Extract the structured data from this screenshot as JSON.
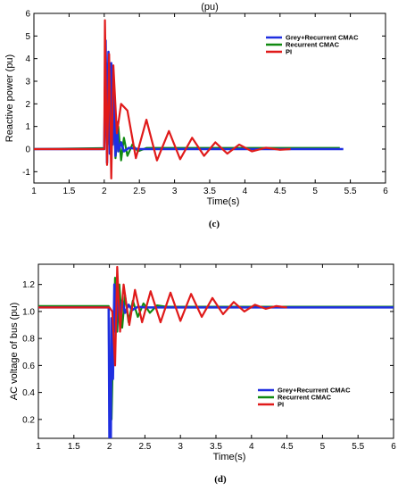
{
  "charts": [
    {
      "type": "line",
      "title": "(pu)",
      "xlabel": "Time(s)",
      "ylabel": "Reactive power (pu)",
      "caption": "(c)",
      "xlim": [
        1,
        6
      ],
      "ylim": [
        -1.5,
        6
      ],
      "xticks": [
        "1",
        "1.5",
        "2",
        "2.5",
        "3",
        "3.5",
        "4",
        "4.5",
        "5",
        "5.5",
        "6"
      ],
      "yticks": [
        "-1",
        "0",
        "1",
        "2",
        "3",
        "4",
        "5",
        "6"
      ],
      "legend_position": "top-right",
      "series": [
        {
          "name": "Grey+Recurrent CMAC",
          "color": "#1f2fe0",
          "x_end": 5.4,
          "points": [
            [
              1,
              0
            ],
            [
              1.9,
              0
            ],
            [
              2.0,
              0
            ],
            [
              2.02,
              4.8
            ],
            [
              2.04,
              -0.6
            ],
            [
              2.06,
              4.3
            ],
            [
              2.08,
              -0.2
            ],
            [
              2.1,
              3.8
            ],
            [
              2.12,
              0.2
            ],
            [
              2.14,
              2.6
            ],
            [
              2.16,
              -0.3
            ],
            [
              2.18,
              1.2
            ],
            [
              2.2,
              -0.1
            ],
            [
              2.24,
              0.3
            ],
            [
              2.28,
              -0.1
            ],
            [
              2.35,
              0.05
            ],
            [
              2.5,
              0
            ],
            [
              5.4,
              0
            ]
          ]
        },
        {
          "name": "Recurrent CMAC",
          "color": "#118a11",
          "x_end": 5.35,
          "points": [
            [
              1,
              0
            ],
            [
              1.95,
              0.04
            ],
            [
              2.0,
              0.04
            ],
            [
              2.03,
              3.8
            ],
            [
              2.05,
              0.2
            ],
            [
              2.08,
              2.8
            ],
            [
              2.1,
              -0.2
            ],
            [
              2.13,
              2.2
            ],
            [
              2.16,
              -0.4
            ],
            [
              2.2,
              1.0
            ],
            [
              2.24,
              -0.5
            ],
            [
              2.28,
              0.5
            ],
            [
              2.33,
              -0.3
            ],
            [
              2.4,
              0.2
            ],
            [
              2.48,
              -0.1
            ],
            [
              2.6,
              0.05
            ],
            [
              5.35,
              0.05
            ]
          ]
        },
        {
          "name": "PI",
          "color": "#e01a1a",
          "x_end": 4.65,
          "points": [
            [
              1,
              0
            ],
            [
              1.95,
              0
            ],
            [
              2.0,
              0
            ],
            [
              2.01,
              5.7
            ],
            [
              2.04,
              -0.7
            ],
            [
              2.07,
              4.2
            ],
            [
              2.1,
              -1.3
            ],
            [
              2.13,
              3.7
            ],
            [
              2.18,
              0.7
            ],
            [
              2.24,
              2.0
            ],
            [
              2.33,
              1.7
            ],
            [
              2.45,
              -0.4
            ],
            [
              2.6,
              1.3
            ],
            [
              2.75,
              -0.5
            ],
            [
              2.92,
              0.8
            ],
            [
              3.08,
              -0.45
            ],
            [
              3.25,
              0.5
            ],
            [
              3.42,
              -0.3
            ],
            [
              3.58,
              0.3
            ],
            [
              3.75,
              -0.2
            ],
            [
              3.92,
              0.2
            ],
            [
              4.1,
              -0.1
            ],
            [
              4.3,
              0.06
            ],
            [
              4.5,
              -0.03
            ],
            [
              4.65,
              0
            ]
          ]
        }
      ]
    },
    {
      "type": "line",
      "title": "",
      "xlabel": "Time(s)",
      "ylabel": "AC voltage of bus (pu)",
      "caption": "(d)",
      "xlim": [
        1,
        6
      ],
      "ylim": [
        0.06,
        1.35
      ],
      "xticks": [
        "1",
        "1.5",
        "2",
        "2.5",
        "3",
        "3.5",
        "4",
        "4.5",
        "5",
        "5.5",
        "6"
      ],
      "yticks": [
        "0.2",
        "0.4",
        "0.6",
        "0.8",
        "1.0",
        "1.2"
      ],
      "legend_position": "bottom-right",
      "series": [
        {
          "name": "Grey+Recurrent CMAC",
          "color": "#1f2fe0",
          "x_end": 6,
          "points": [
            [
              1,
              1.03
            ],
            [
              1.99,
              1.03
            ],
            [
              2.0,
              0.06
            ],
            [
              2.02,
              0.06
            ],
            [
              2.03,
              0.95
            ],
            [
              2.05,
              0.5
            ],
            [
              2.07,
              1.2
            ],
            [
              2.09,
              0.85
            ],
            [
              2.12,
              1.15
            ],
            [
              2.15,
              0.95
            ],
            [
              2.18,
              1.08
            ],
            [
              2.22,
              0.99
            ],
            [
              2.27,
              1.05
            ],
            [
              2.32,
              1.01
            ],
            [
              2.4,
              1.035
            ],
            [
              2.5,
              1.03
            ],
            [
              6,
              1.03
            ]
          ]
        },
        {
          "name": "Recurrent CMAC",
          "color": "#118a11",
          "x_end": 6,
          "points": [
            [
              1,
              1.04
            ],
            [
              1.99,
              1.04
            ],
            [
              2.0,
              0.2
            ],
            [
              2.03,
              0.2
            ],
            [
              2.05,
              0.7
            ],
            [
              2.08,
              1.25
            ],
            [
              2.11,
              0.85
            ],
            [
              2.14,
              1.2
            ],
            [
              2.18,
              0.88
            ],
            [
              2.22,
              1.12
            ],
            [
              2.27,
              0.92
            ],
            [
              2.33,
              1.08
            ],
            [
              2.4,
              0.96
            ],
            [
              2.48,
              1.06
            ],
            [
              2.57,
              0.99
            ],
            [
              2.67,
              1.045
            ],
            [
              2.8,
              1.035
            ],
            [
              6,
              1.035
            ]
          ]
        },
        {
          "name": "PI",
          "color": "#e01a1a",
          "x_end": 4.5,
          "points": [
            [
              1,
              1.03
            ],
            [
              2.0,
              1.03
            ],
            [
              2.04,
              1.0
            ],
            [
              2.08,
              0.6
            ],
            [
              2.11,
              1.33
            ],
            [
              2.15,
              0.85
            ],
            [
              2.2,
              1.2
            ],
            [
              2.28,
              0.9
            ],
            [
              2.36,
              1.16
            ],
            [
              2.46,
              0.92
            ],
            [
              2.58,
              1.15
            ],
            [
              2.72,
              0.92
            ],
            [
              2.86,
              1.14
            ],
            [
              3.0,
              0.93
            ],
            [
              3.15,
              1.13
            ],
            [
              3.3,
              0.96
            ],
            [
              3.45,
              1.1
            ],
            [
              3.6,
              0.98
            ],
            [
              3.75,
              1.07
            ],
            [
              3.9,
              1.0
            ],
            [
              4.05,
              1.05
            ],
            [
              4.2,
              1.02
            ],
            [
              4.35,
              1.04
            ],
            [
              4.5,
              1.03
            ]
          ]
        }
      ]
    }
  ]
}
